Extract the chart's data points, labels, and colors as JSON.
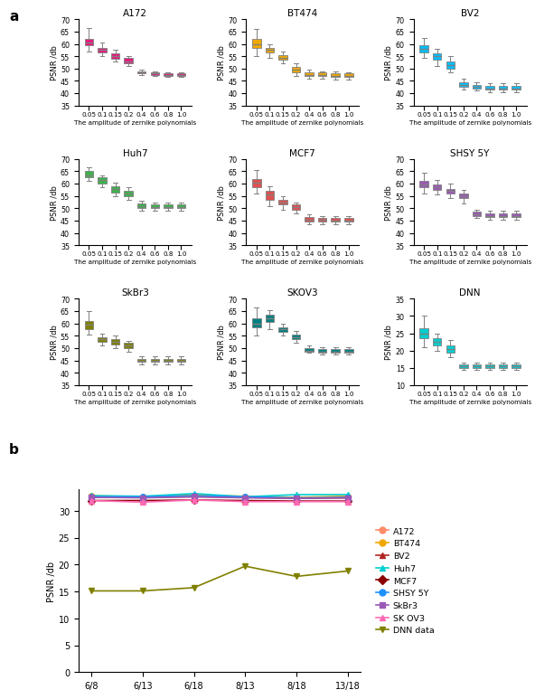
{
  "panel_a_label": "a",
  "panel_b_label": "b",
  "x_labels": [
    "0.05",
    "0.1",
    "0.15",
    "0.2",
    "0.4",
    "0.6",
    "0.8",
    "1.0"
  ],
  "xlabel": "The amplitude of zernike polynomials",
  "ylabel": "PSNR /db",
  "subplots": [
    {
      "title": "A172",
      "color": "#E8197E",
      "ylim": [
        35,
        70
      ],
      "yticks": [
        35,
        40,
        45,
        50,
        55,
        60,
        65,
        70
      ],
      "boxes": [
        {
          "med": 60.5,
          "q1": 59.5,
          "q3": 62.0,
          "whislo": 57.0,
          "whishi": 66.5
        },
        {
          "med": 57.5,
          "q1": 56.5,
          "q3": 58.5,
          "whislo": 55.0,
          "whishi": 60.5
        },
        {
          "med": 55.0,
          "q1": 54.0,
          "q3": 56.0,
          "whislo": 53.0,
          "whishi": 57.5
        },
        {
          "med": 53.0,
          "q1": 52.0,
          "q3": 54.5,
          "whislo": 51.0,
          "whishi": 55.0
        },
        {
          "med": 48.5,
          "q1": 48.0,
          "q3": 49.0,
          "whislo": 47.5,
          "whishi": 49.5
        },
        {
          "med": 48.0,
          "q1": 47.5,
          "q3": 48.5,
          "whislo": 47.0,
          "whishi": 49.0
        },
        {
          "med": 47.5,
          "q1": 47.0,
          "q3": 48.0,
          "whislo": 46.5,
          "whishi": 48.5
        },
        {
          "med": 47.5,
          "q1": 47.0,
          "q3": 48.0,
          "whislo": 46.5,
          "whishi": 48.5
        }
      ]
    },
    {
      "title": "BT474",
      "color": "#F0A800",
      "ylim": [
        35,
        70
      ],
      "yticks": [
        35,
        40,
        45,
        50,
        55,
        60,
        65,
        70
      ],
      "boxes": [
        {
          "med": 60.0,
          "q1": 58.5,
          "q3": 62.0,
          "whislo": 55.0,
          "whishi": 66.0
        },
        {
          "med": 57.5,
          "q1": 56.5,
          "q3": 58.5,
          "whislo": 54.5,
          "whishi": 60.0
        },
        {
          "med": 54.5,
          "q1": 53.5,
          "q3": 55.5,
          "whislo": 52.0,
          "whishi": 57.0
        },
        {
          "med": 49.5,
          "q1": 48.5,
          "q3": 50.5,
          "whislo": 47.0,
          "whishi": 52.0
        },
        {
          "med": 47.5,
          "q1": 47.0,
          "q3": 48.5,
          "whislo": 46.0,
          "whishi": 49.5
        },
        {
          "med": 47.5,
          "q1": 47.0,
          "q3": 48.5,
          "whislo": 46.0,
          "whishi": 49.0
        },
        {
          "med": 47.0,
          "q1": 46.5,
          "q3": 48.0,
          "whislo": 45.5,
          "whishi": 49.0
        },
        {
          "med": 47.0,
          "q1": 46.5,
          "q3": 48.0,
          "whislo": 45.5,
          "whishi": 48.5
        }
      ]
    },
    {
      "title": "BV2",
      "color": "#00BFFF",
      "ylim": [
        35,
        70
      ],
      "yticks": [
        35,
        40,
        45,
        50,
        55,
        60,
        65,
        70
      ],
      "boxes": [
        {
          "med": 58.0,
          "q1": 56.5,
          "q3": 59.5,
          "whislo": 54.5,
          "whishi": 62.5
        },
        {
          "med": 55.0,
          "q1": 53.5,
          "q3": 56.0,
          "whislo": 51.0,
          "whishi": 58.0
        },
        {
          "med": 51.5,
          "q1": 50.0,
          "q3": 53.0,
          "whislo": 48.5,
          "whishi": 55.0
        },
        {
          "med": 43.5,
          "q1": 42.5,
          "q3": 44.5,
          "whislo": 41.5,
          "whishi": 46.0
        },
        {
          "med": 42.5,
          "q1": 42.0,
          "q3": 43.5,
          "whislo": 41.0,
          "whishi": 44.5
        },
        {
          "med": 42.0,
          "q1": 41.5,
          "q3": 43.0,
          "whislo": 40.5,
          "whishi": 44.0
        },
        {
          "med": 42.0,
          "q1": 41.5,
          "q3": 43.0,
          "whislo": 40.5,
          "whishi": 44.0
        },
        {
          "med": 42.0,
          "q1": 41.5,
          "q3": 43.0,
          "whislo": 40.5,
          "whishi": 44.0
        }
      ]
    },
    {
      "title": "Huh7",
      "color": "#3CB44B",
      "ylim": [
        35,
        70
      ],
      "yticks": [
        35,
        40,
        45,
        50,
        55,
        60,
        65,
        70
      ],
      "boxes": [
        {
          "med": 63.5,
          "q1": 62.5,
          "q3": 65.0,
          "whislo": 61.0,
          "whishi": 66.5
        },
        {
          "med": 61.5,
          "q1": 60.0,
          "q3": 62.5,
          "whislo": 58.5,
          "whishi": 63.5
        },
        {
          "med": 58.0,
          "q1": 56.5,
          "q3": 59.0,
          "whislo": 55.0,
          "whishi": 60.5
        },
        {
          "med": 56.0,
          "q1": 55.0,
          "q3": 57.0,
          "whislo": 53.5,
          "whishi": 58.5
        },
        {
          "med": 51.0,
          "q1": 50.0,
          "q3": 52.0,
          "whislo": 49.0,
          "whishi": 53.0
        },
        {
          "med": 50.5,
          "q1": 50.0,
          "q3": 51.5,
          "whislo": 49.0,
          "whishi": 52.5
        },
        {
          "med": 50.5,
          "q1": 50.0,
          "q3": 51.5,
          "whislo": 49.0,
          "whishi": 52.5
        },
        {
          "med": 50.5,
          "q1": 50.0,
          "q3": 51.5,
          "whislo": 49.0,
          "whishi": 52.5
        }
      ]
    },
    {
      "title": "MCF7",
      "color": "#E05050",
      "ylim": [
        35,
        70
      ],
      "yticks": [
        35,
        40,
        45,
        50,
        55,
        60,
        65,
        70
      ],
      "boxes": [
        {
          "med": 60.5,
          "q1": 58.5,
          "q3": 62.0,
          "whislo": 56.0,
          "whishi": 65.5
        },
        {
          "med": 55.5,
          "q1": 53.5,
          "q3": 57.0,
          "whislo": 51.0,
          "whishi": 59.0
        },
        {
          "med": 52.5,
          "q1": 51.5,
          "q3": 53.5,
          "whislo": 49.5,
          "whishi": 55.0
        },
        {
          "med": 50.5,
          "q1": 49.5,
          "q3": 51.5,
          "whislo": 48.0,
          "whishi": 52.5
        },
        {
          "med": 45.5,
          "q1": 44.5,
          "q3": 46.5,
          "whislo": 43.5,
          "whishi": 47.5
        },
        {
          "med": 45.5,
          "q1": 44.5,
          "q3": 46.0,
          "whislo": 43.5,
          "whishi": 47.0
        },
        {
          "med": 45.0,
          "q1": 44.5,
          "q3": 46.0,
          "whislo": 43.5,
          "whishi": 47.0
        },
        {
          "med": 45.0,
          "q1": 44.5,
          "q3": 46.0,
          "whislo": 43.5,
          "whishi": 47.0
        }
      ]
    },
    {
      "title": "SHSY 5Y",
      "color": "#9B59B6",
      "ylim": [
        35,
        70
      ],
      "yticks": [
        35,
        40,
        45,
        50,
        55,
        60,
        65,
        70
      ],
      "boxes": [
        {
          "med": 59.5,
          "q1": 58.5,
          "q3": 61.0,
          "whislo": 56.0,
          "whishi": 64.5
        },
        {
          "med": 58.5,
          "q1": 57.5,
          "q3": 59.5,
          "whislo": 55.5,
          "whishi": 61.5
        },
        {
          "med": 57.0,
          "q1": 56.0,
          "q3": 58.0,
          "whislo": 54.0,
          "whishi": 60.0
        },
        {
          "med": 55.0,
          "q1": 54.0,
          "q3": 56.0,
          "whislo": 52.0,
          "whishi": 57.5
        },
        {
          "med": 47.5,
          "q1": 47.0,
          "q3": 48.5,
          "whislo": 46.0,
          "whishi": 49.5
        },
        {
          "med": 47.0,
          "q1": 46.5,
          "q3": 48.0,
          "whislo": 45.5,
          "whishi": 49.0
        },
        {
          "med": 47.0,
          "q1": 46.5,
          "q3": 48.0,
          "whislo": 45.5,
          "whishi": 49.0
        },
        {
          "med": 47.0,
          "q1": 46.5,
          "q3": 48.0,
          "whislo": 45.5,
          "whishi": 49.0
        }
      ]
    },
    {
      "title": "SkBr3",
      "color": "#808000",
      "ylim": [
        35,
        70
      ],
      "yticks": [
        35,
        40,
        45,
        50,
        55,
        60,
        65,
        70
      ],
      "boxes": [
        {
          "med": 59.5,
          "q1": 57.5,
          "q3": 61.0,
          "whislo": 55.5,
          "whishi": 65.0
        },
        {
          "med": 53.5,
          "q1": 52.5,
          "q3": 54.5,
          "whislo": 51.0,
          "whishi": 56.0
        },
        {
          "med": 52.5,
          "q1": 51.5,
          "q3": 53.5,
          "whislo": 50.0,
          "whishi": 55.0
        },
        {
          "med": 51.0,
          "q1": 50.0,
          "q3": 52.0,
          "whislo": 48.5,
          "whishi": 53.0
        },
        {
          "med": 45.0,
          "q1": 44.5,
          "q3": 45.5,
          "whislo": 43.5,
          "whishi": 46.5
        },
        {
          "med": 45.0,
          "q1": 44.5,
          "q3": 45.5,
          "whislo": 43.5,
          "whishi": 46.5
        },
        {
          "med": 45.0,
          "q1": 44.5,
          "q3": 45.5,
          "whislo": 43.5,
          "whishi": 46.5
        },
        {
          "med": 45.0,
          "q1": 44.5,
          "q3": 45.5,
          "whislo": 43.5,
          "whishi": 46.5
        }
      ]
    },
    {
      "title": "SKOV3",
      "color": "#008080",
      "ylim": [
        35,
        70
      ],
      "yticks": [
        35,
        40,
        45,
        50,
        55,
        60,
        65,
        70
      ],
      "boxes": [
        {
          "med": 60.0,
          "q1": 58.5,
          "q3": 62.0,
          "whislo": 55.0,
          "whishi": 66.5
        },
        {
          "med": 62.0,
          "q1": 60.5,
          "q3": 63.5,
          "whislo": 57.5,
          "whishi": 65.5
        },
        {
          "med": 57.5,
          "q1": 56.5,
          "q3": 58.5,
          "whislo": 55.0,
          "whishi": 60.0
        },
        {
          "med": 54.5,
          "q1": 53.5,
          "q3": 55.5,
          "whislo": 52.0,
          "whishi": 57.0
        },
        {
          "med": 49.0,
          "q1": 48.5,
          "q3": 50.0,
          "whislo": 48.0,
          "whishi": 51.0
        },
        {
          "med": 48.5,
          "q1": 48.0,
          "q3": 49.5,
          "whislo": 47.5,
          "whishi": 50.5
        },
        {
          "med": 48.5,
          "q1": 48.0,
          "q3": 49.5,
          "whislo": 47.5,
          "whishi": 50.5
        },
        {
          "med": 48.5,
          "q1": 48.0,
          "q3": 49.5,
          "whislo": 47.5,
          "whishi": 50.5
        }
      ]
    },
    {
      "title": "DNN",
      "color": "#00CED1",
      "ylim": [
        10,
        35
      ],
      "yticks": [
        10,
        15,
        20,
        25,
        30,
        35
      ],
      "boxes": [
        {
          "med": 25.0,
          "q1": 23.5,
          "q3": 26.5,
          "whislo": 21.0,
          "whishi": 30.0
        },
        {
          "med": 22.5,
          "q1": 21.5,
          "q3": 23.5,
          "whislo": 20.0,
          "whishi": 25.0
        },
        {
          "med": 20.5,
          "q1": 19.5,
          "q3": 21.5,
          "whislo": 18.0,
          "whishi": 23.0
        },
        {
          "med": 15.5,
          "q1": 15.0,
          "q3": 16.0,
          "whislo": 14.5,
          "whishi": 16.5
        },
        {
          "med": 15.5,
          "q1": 15.0,
          "q3": 16.0,
          "whislo": 14.5,
          "whishi": 16.5
        },
        {
          "med": 15.5,
          "q1": 15.0,
          "q3": 16.0,
          "whislo": 14.5,
          "whishi": 16.5
        },
        {
          "med": 15.5,
          "q1": 15.0,
          "q3": 16.0,
          "whislo": 14.5,
          "whishi": 16.5
        },
        {
          "med": 15.5,
          "q1": 15.0,
          "q3": 16.0,
          "whislo": 14.5,
          "whishi": 16.5
        }
      ]
    }
  ],
  "line_plot": {
    "x_labels": [
      "6/8",
      "6/13",
      "6/18",
      "8/13",
      "8/18",
      "13/18"
    ],
    "ylabel": "PSNR /db",
    "ylim": [
      0,
      34
    ],
    "yticks": [
      0,
      5,
      10,
      15,
      20,
      25,
      30
    ],
    "series": [
      {
        "name": "A172",
        "color": "#FF8C69",
        "marker": "o",
        "values": [
          32.7,
          32.5,
          32.8,
          32.5,
          32.4,
          32.6
        ]
      },
      {
        "name": "BT474",
        "color": "#F0A800",
        "marker": "o",
        "values": [
          32.8,
          32.6,
          32.9,
          32.7,
          32.5,
          32.7
        ]
      },
      {
        "name": "BV2",
        "color": "#B22222",
        "marker": "^",
        "values": [
          32.5,
          32.5,
          32.6,
          32.5,
          32.3,
          32.4
        ]
      },
      {
        "name": "Huh7",
        "color": "#00CED1",
        "marker": "^",
        "values": [
          32.8,
          32.7,
          33.2,
          32.6,
          33.0,
          33.0
        ]
      },
      {
        "name": "MCF7",
        "color": "#8B0000",
        "marker": "D",
        "values": [
          31.9,
          31.9,
          32.0,
          31.9,
          31.8,
          31.8
        ]
      },
      {
        "name": "SHSY 5Y",
        "color": "#1E90FF",
        "marker": "o",
        "values": [
          32.6,
          32.6,
          32.8,
          32.6,
          32.4,
          32.5
        ]
      },
      {
        "name": "SkBr3",
        "color": "#9B59B6",
        "marker": "s",
        "values": [
          32.5,
          32.4,
          32.6,
          32.4,
          32.3,
          32.4
        ]
      },
      {
        "name": "SK OV3",
        "color": "#FF69B4",
        "marker": "^",
        "values": [
          31.9,
          31.6,
          32.0,
          31.7,
          31.7,
          31.7
        ]
      },
      {
        "name": "DNN data",
        "color": "#808000",
        "marker": "v",
        "values": [
          15.1,
          15.1,
          15.7,
          19.7,
          17.8,
          18.8
        ]
      }
    ]
  },
  "fig_bg": "#ffffff"
}
